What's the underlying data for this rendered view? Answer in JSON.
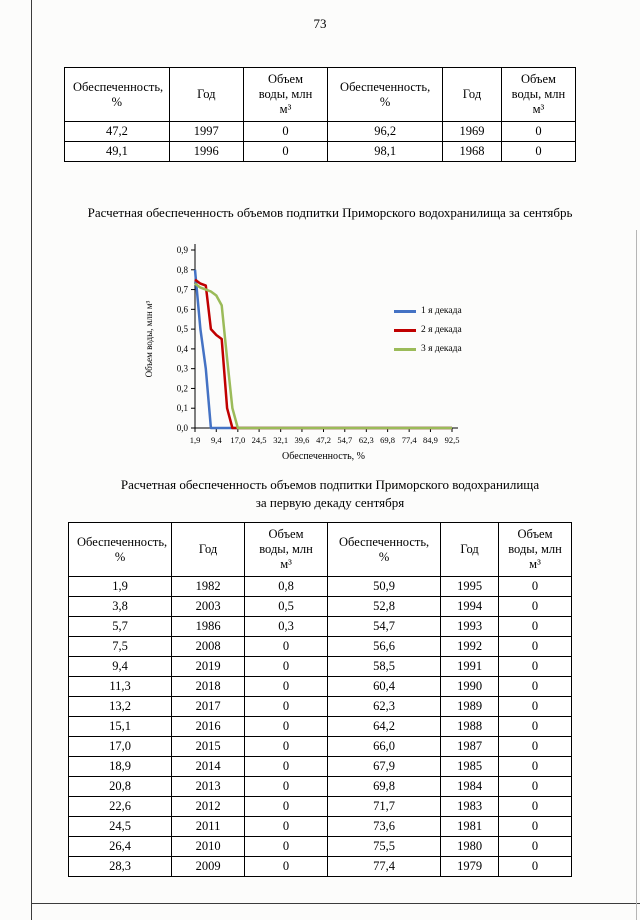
{
  "page": {
    "number": "73"
  },
  "tables": {
    "headers": [
      "Обеспеченность, %",
      "Год",
      "Объем воды, млн м³",
      "Обеспеченность, %",
      "Год",
      "Объем воды, млн м³"
    ],
    "september_rows": [
      [
        "47,2",
        "1997",
        "0",
        "96,2",
        "1969",
        "0"
      ],
      [
        "49,1",
        "1996",
        "0",
        "98,1",
        "1968",
        "0"
      ]
    ],
    "first_decade_rows": [
      [
        "1,9",
        "1982",
        "0,8",
        "50,9",
        "1995",
        "0"
      ],
      [
        "3,8",
        "2003",
        "0,5",
        "52,8",
        "1994",
        "0"
      ],
      [
        "5,7",
        "1986",
        "0,3",
        "54,7",
        "1993",
        "0"
      ],
      [
        "7,5",
        "2008",
        "0",
        "56,6",
        "1992",
        "0"
      ],
      [
        "9,4",
        "2019",
        "0",
        "58,5",
        "1991",
        "0"
      ],
      [
        "11,3",
        "2018",
        "0",
        "60,4",
        "1990",
        "0"
      ],
      [
        "13,2",
        "2017",
        "0",
        "62,3",
        "1989",
        "0"
      ],
      [
        "15,1",
        "2016",
        "0",
        "64,2",
        "1988",
        "0"
      ],
      [
        "17,0",
        "2015",
        "0",
        "66,0",
        "1987",
        "0"
      ],
      [
        "18,9",
        "2014",
        "0",
        "67,9",
        "1985",
        "0"
      ],
      [
        "20,8",
        "2013",
        "0",
        "69,8",
        "1984",
        "0"
      ],
      [
        "22,6",
        "2012",
        "0",
        "71,7",
        "1983",
        "0"
      ],
      [
        "24,5",
        "2011",
        "0",
        "73,6",
        "1981",
        "0"
      ],
      [
        "26,4",
        "2010",
        "0",
        "75,5",
        "1980",
        "0"
      ],
      [
        "28,3",
        "2009",
        "0",
        "77,4",
        "1979",
        "0"
      ]
    ]
  },
  "section2_title": {
    "line1": "Расчетная обеспеченность объемов подпитки Приморского водохранилища",
    "line2": "за первую декаду сентября"
  },
  "chart_data": {
    "type": "line",
    "title": "Расчетная обеспеченность объемов подпитки Приморского водохранилища за сентябрь",
    "xlabel": "Обеспеченность, %",
    "ylabel": "Объем воды, млн м³",
    "ylim": [
      0,
      0.9
    ],
    "ytick_labels": [
      "0,0",
      "0,1",
      "0,2",
      "0,3",
      "0,4",
      "0,5",
      "0,6",
      "0,7",
      "0,8",
      "0,9"
    ],
    "xticks": [
      1.9,
      9.4,
      17.0,
      24.5,
      32.1,
      39.6,
      47.2,
      54.7,
      62.3,
      69.8,
      77.4,
      84.9,
      92.5
    ],
    "xtick_labels": [
      "1,9",
      "9,4",
      "17,0",
      "24,5",
      "32,1",
      "39,6",
      "47,2",
      "54,7",
      "62,3",
      "69,8",
      "77,4",
      "84,9",
      "92,5"
    ],
    "grid": false,
    "legend_position": "right",
    "series": [
      {
        "name": "1 я декада",
        "color": "#4472c4",
        "points": [
          [
            1.9,
            0.8
          ],
          [
            3.8,
            0.5
          ],
          [
            5.7,
            0.3
          ],
          [
            7.5,
            0
          ],
          [
            92.5,
            0
          ]
        ]
      },
      {
        "name": "2 я декада",
        "color": "#c00000",
        "points": [
          [
            1.9,
            0.75
          ],
          [
            3.8,
            0.73
          ],
          [
            5.7,
            0.72
          ],
          [
            7.5,
            0.5
          ],
          [
            9.4,
            0.47
          ],
          [
            11.3,
            0.45
          ],
          [
            13.2,
            0.1
          ],
          [
            15.1,
            0
          ],
          [
            92.5,
            0
          ]
        ]
      },
      {
        "name": "3 я декада",
        "color": "#9bbb59",
        "points": [
          [
            1.9,
            0.73
          ],
          [
            3.8,
            0.71
          ],
          [
            5.7,
            0.7
          ],
          [
            7.5,
            0.69
          ],
          [
            9.4,
            0.67
          ],
          [
            11.3,
            0.62
          ],
          [
            13.2,
            0.35
          ],
          [
            15.1,
            0.1
          ],
          [
            17.0,
            0
          ],
          [
            92.5,
            0
          ]
        ]
      }
    ]
  }
}
